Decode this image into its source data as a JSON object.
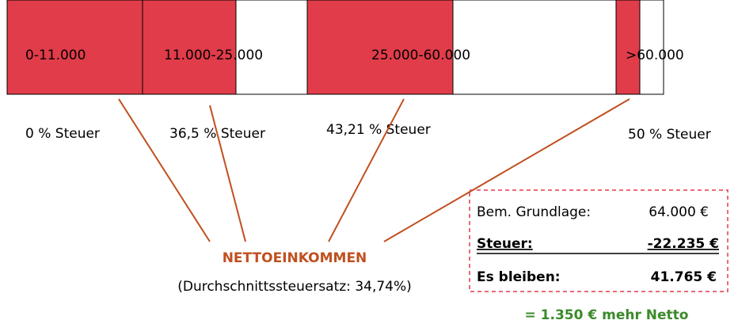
{
  "brackets": [
    {
      "label": "0-11.000",
      "tax": "0 % Steuer"
    },
    {
      "label": "11.000-25.000",
      "tax": "36,5 % Steuer"
    },
    {
      "label": "25.000-60.000",
      "tax": "43,21 % Steuer"
    },
    {
      "label": ">60.000",
      "tax": "50 % Steuer"
    }
  ],
  "result": {
    "title": "NETTOEINKOMMEN",
    "subtitle": "(Durchschnittssteuersatz: 34,74%)"
  },
  "summary": {
    "rows": [
      [
        "Bem. Grundlage:",
        "64.000 €"
      ],
      [
        "Steuer:",
        "-22.235 €"
      ],
      [
        "Es bleiben:",
        "41.765 €"
      ]
    ],
    "footer": "= 1.350 € mehr Netto"
  }
}
